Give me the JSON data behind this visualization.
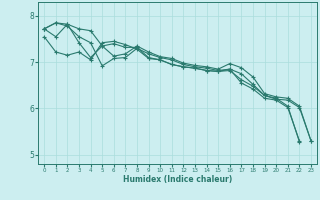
{
  "title": "",
  "xlabel": "Humidex (Indice chaleur)",
  "background_color": "#cceef0",
  "grid_color": "#aadddd",
  "line_color": "#2a7a6e",
  "xlim": [
    -0.5,
    23.5
  ],
  "ylim": [
    4.8,
    8.3
  ],
  "yticks": [
    5,
    6,
    7,
    8
  ],
  "xticks": [
    0,
    1,
    2,
    3,
    4,
    5,
    6,
    7,
    8,
    9,
    10,
    11,
    12,
    13,
    14,
    15,
    16,
    17,
    18,
    19,
    20,
    21,
    22,
    23
  ],
  "series": [
    [
      7.72,
      7.85,
      7.82,
      7.72,
      7.68,
      7.35,
      7.13,
      7.18,
      7.35,
      7.22,
      7.12,
      7.08,
      6.98,
      6.93,
      6.9,
      6.85,
      6.97,
      6.88,
      6.68,
      6.32,
      6.25,
      6.22,
      6.05,
      5.3
    ],
    [
      7.72,
      7.85,
      7.78,
      7.55,
      7.42,
      6.92,
      7.08,
      7.1,
      7.3,
      7.18,
      7.1,
      7.05,
      6.95,
      6.9,
      6.87,
      6.82,
      6.85,
      6.75,
      6.52,
      6.28,
      6.2,
      6.18,
      6.02,
      5.3
    ],
    [
      7.72,
      7.55,
      7.82,
      7.42,
      7.1,
      7.35,
      7.4,
      7.32,
      7.32,
      7.1,
      7.05,
      6.95,
      6.9,
      6.87,
      6.82,
      6.8,
      6.85,
      6.55,
      6.42,
      6.22,
      6.18,
      6.02,
      5.3,
      null
    ],
    [
      7.55,
      7.22,
      7.15,
      7.22,
      7.05,
      7.42,
      7.45,
      7.38,
      7.28,
      7.08,
      7.05,
      6.95,
      6.9,
      6.87,
      6.82,
      6.8,
      6.82,
      6.62,
      6.48,
      6.28,
      6.22,
      6.05,
      5.28,
      null
    ]
  ]
}
